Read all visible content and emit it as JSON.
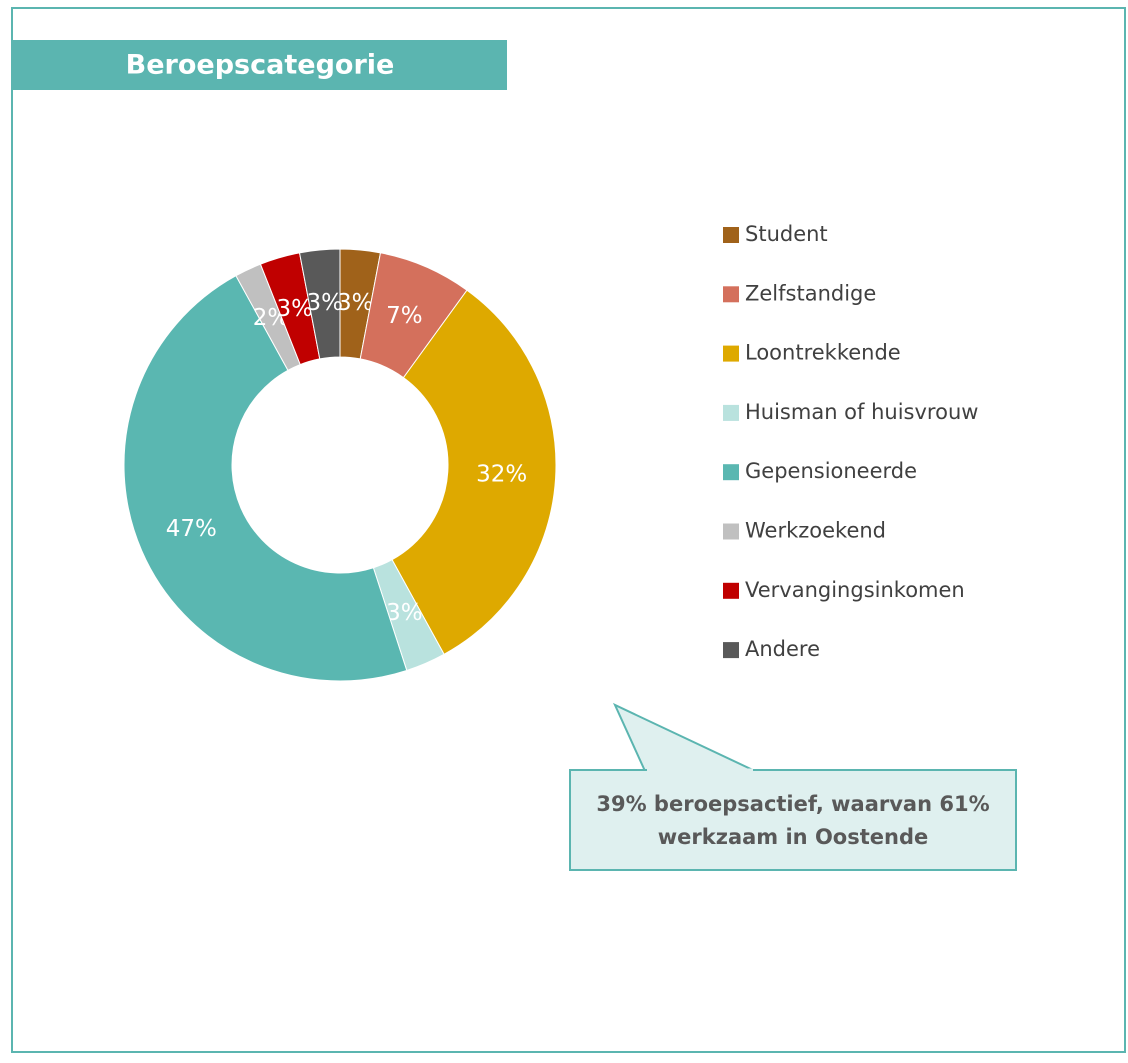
{
  "chart_data": {
    "type": "donut",
    "title": "Beroepscategorie",
    "categories": [
      "Student",
      "Zelfstandige",
      "Loontrekkende",
      "Huisman of huisvrouw",
      "Gepensioneerde",
      "Werkzoekend",
      "Vervangingsinkomen",
      "Andere"
    ],
    "values": [
      3,
      7,
      32,
      3,
      47,
      2,
      3,
      3
    ],
    "value_labels": [
      "3%",
      "7%",
      "32%",
      "3%",
      "47%",
      "2%",
      "3%",
      "3%"
    ],
    "colors": [
      "#a0621a",
      "#d4705c",
      "#dea900",
      "#b9e2de",
      "#5ab7b1",
      "#c0c0c0",
      "#c00000",
      "#595959"
    ],
    "legend": "right",
    "annotation": [
      "39% beroepsactief, waarvan 61%",
      "werkzaam in Oostende"
    ]
  }
}
